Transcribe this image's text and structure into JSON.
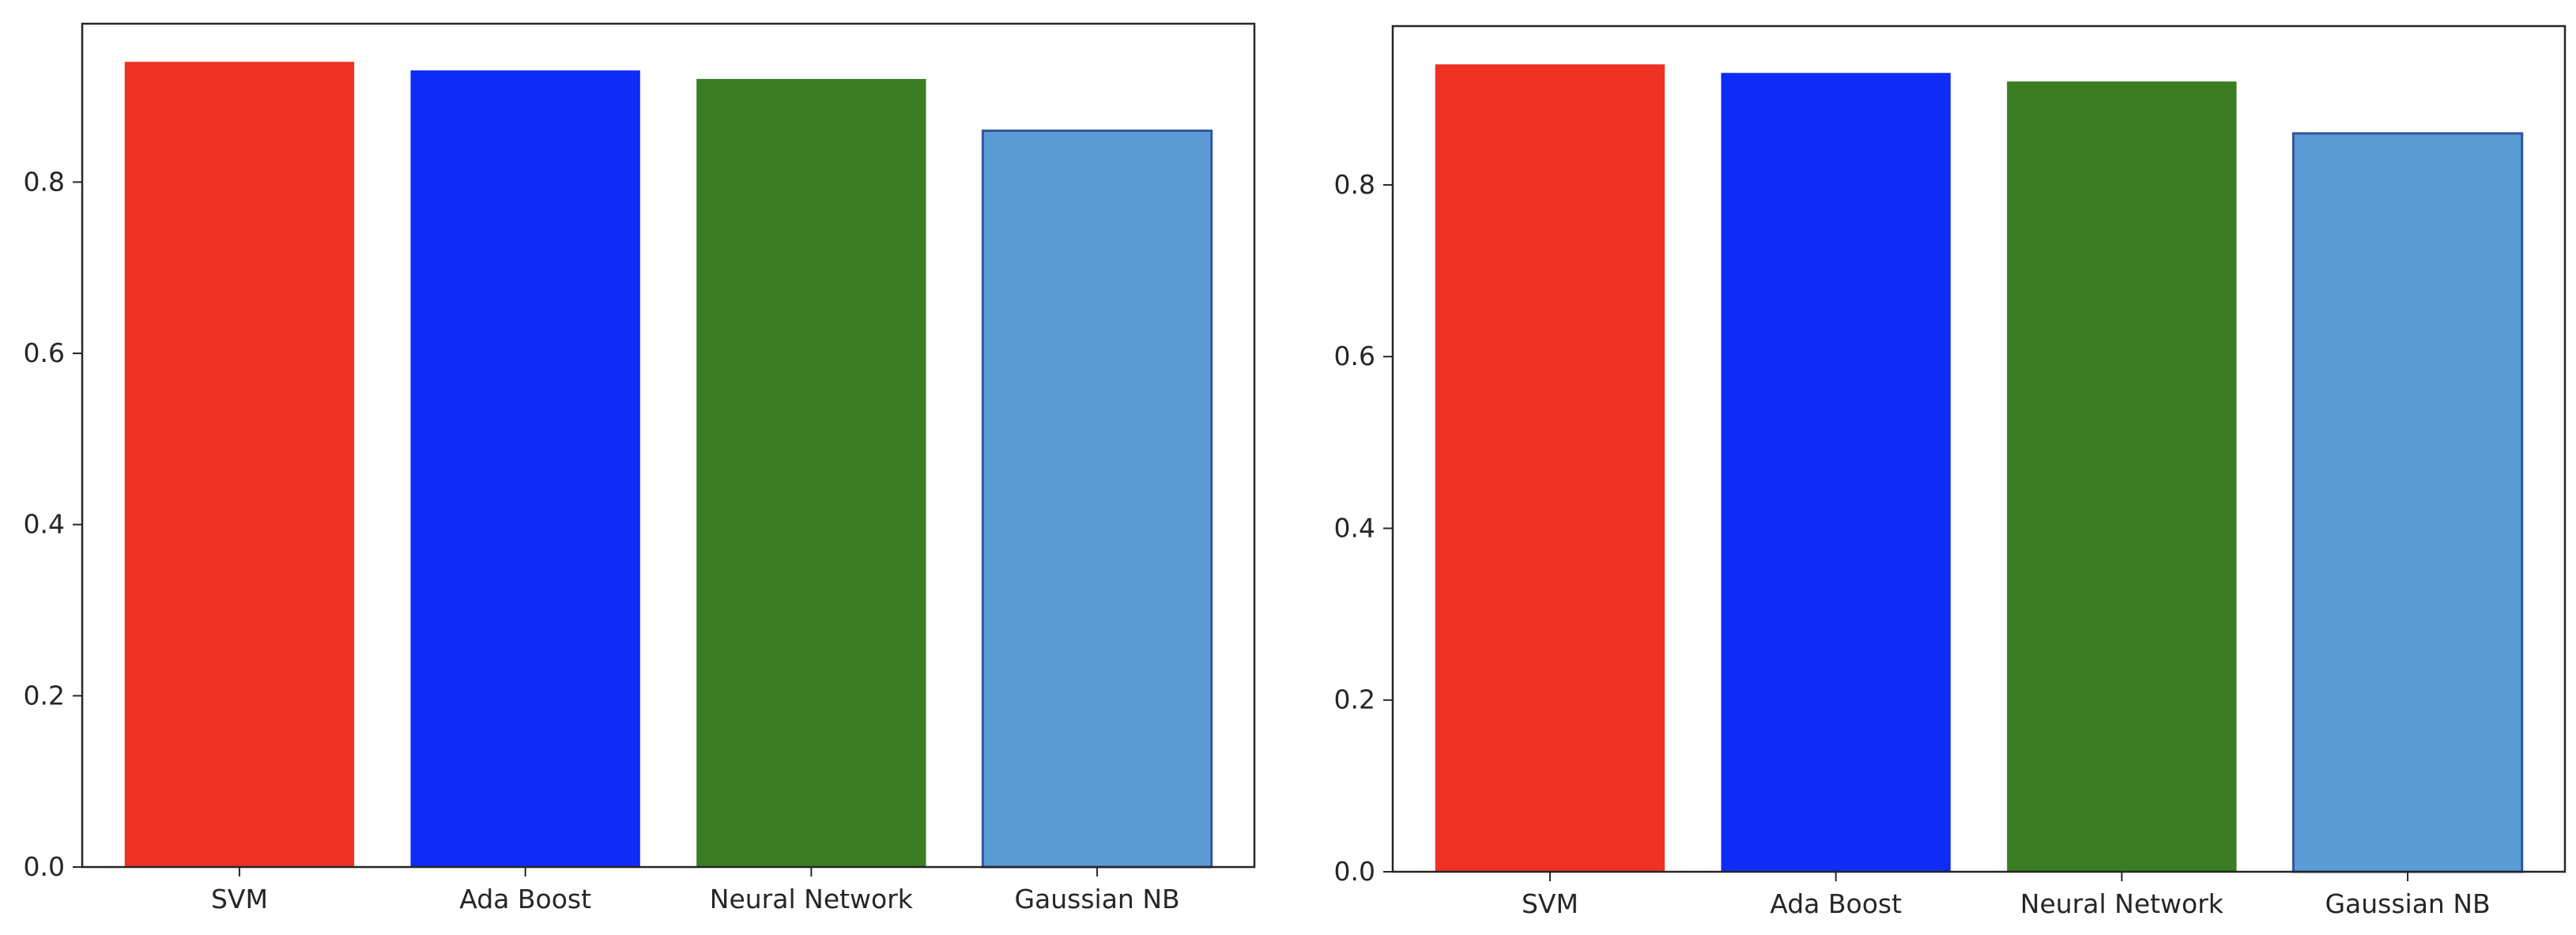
{
  "chart_data": [
    {
      "type": "bar",
      "categories": [
        "SVM",
        "Ada Boost",
        "Neural Network",
        "Gaussian NB"
      ],
      "values": [
        0.94,
        0.93,
        0.92,
        0.86
      ],
      "colors": [
        "#ee3224",
        "#0f2cf7",
        "#3a7d22",
        "#5b9bd5"
      ],
      "ylim": [
        0,
        0.985
      ],
      "yticks": [
        "0.0",
        "0.2",
        "0.4",
        "0.6",
        "0.8"
      ],
      "grid": false
    },
    {
      "type": "bar",
      "categories": [
        "SVM",
        "Ada Boost",
        "Neural Network",
        "Gaussian NB"
      ],
      "values": [
        0.94,
        0.93,
        0.92,
        0.86
      ],
      "colors": [
        "#ee3224",
        "#0f2cf7",
        "#3a7d22",
        "#5b9bd5"
      ],
      "ylim": [
        0,
        0.985
      ],
      "yticks": [
        "0.0",
        "0.2",
        "0.4",
        "0.6",
        "0.8"
      ],
      "grid": false
    }
  ]
}
